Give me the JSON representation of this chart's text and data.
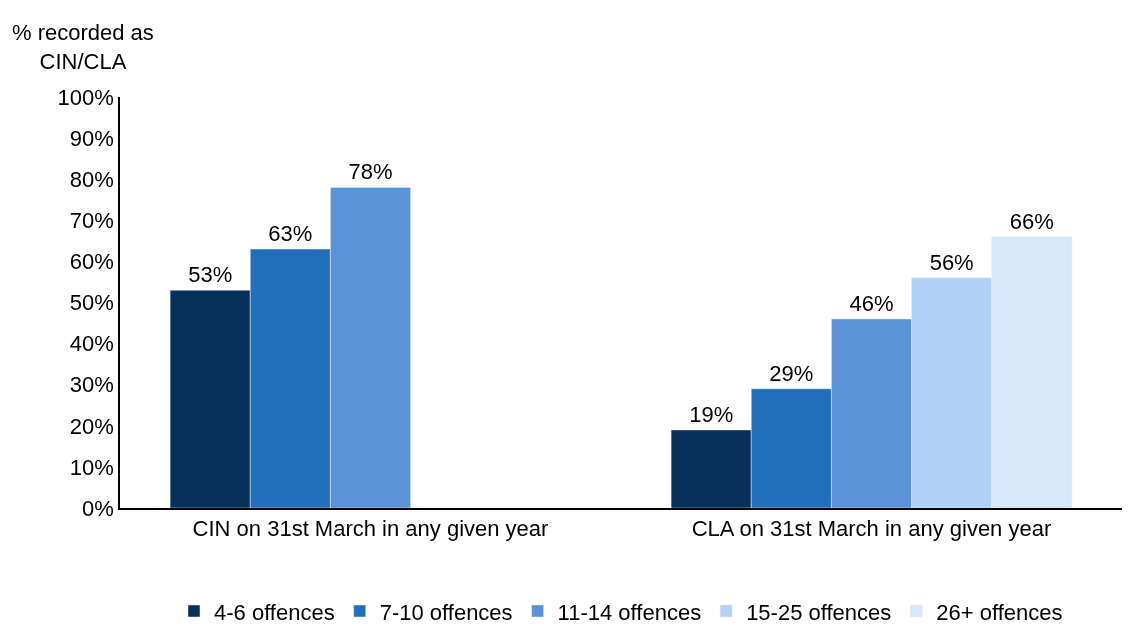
{
  "chart_data": {
    "type": "bar",
    "ylabel": "% recorded as\nCIN/CLA",
    "categories": [
      "CIN on 31st March in any given year",
      "CLA on 31st March in any given year"
    ],
    "series": [
      {
        "name": "4-6 offences",
        "color": "#06305a",
        "values": [
          53,
          19
        ],
        "value_labels": [
          "53%",
          "19%"
        ]
      },
      {
        "name": "7-10 offences",
        "color": "#1f6fbb",
        "values": [
          63,
          29
        ],
        "value_labels": [
          "63%",
          "29%"
        ]
      },
      {
        "name": "11-14 offences",
        "color": "#5b93d9",
        "values": [
          78,
          46
        ],
        "value_labels": [
          "78%",
          "46%"
        ]
      },
      {
        "name": "15-25 offences",
        "color": "#b1d1f7",
        "values": [
          null,
          56
        ],
        "value_labels": [
          null,
          "56%"
        ]
      },
      {
        "name": "26+ offences",
        "color": "#d6e7fb",
        "values": [
          null,
          66
        ],
        "value_labels": [
          null,
          "66%"
        ]
      }
    ],
    "ylim": [
      0,
      100
    ],
    "yticks": [
      {
        "value": 0,
        "label": "0%"
      },
      {
        "value": 10,
        "label": "10%"
      },
      {
        "value": 20,
        "label": "20%"
      },
      {
        "value": 30,
        "label": "30%"
      },
      {
        "value": 40,
        "label": "40%"
      },
      {
        "value": 50,
        "label": "50%"
      },
      {
        "value": 60,
        "label": "60%"
      },
      {
        "value": 70,
        "label": "70%"
      },
      {
        "value": 80,
        "label": "80%"
      },
      {
        "value": 90,
        "label": "90%"
      },
      {
        "value": 100,
        "label": "100%"
      }
    ],
    "legend": "bottom"
  }
}
